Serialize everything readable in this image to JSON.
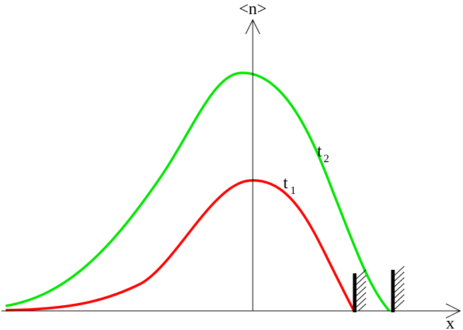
{
  "axes": {
    "y_label": "<n>",
    "x_label": "x"
  },
  "curves": [
    {
      "label": "t",
      "subscript": "1",
      "color": "#ff0000"
    },
    {
      "label": "t",
      "subscript": "2",
      "color": "#00e600"
    }
  ],
  "colors": {
    "axis": "#000000",
    "wall": "#000000",
    "background": "#ffffff"
  }
}
